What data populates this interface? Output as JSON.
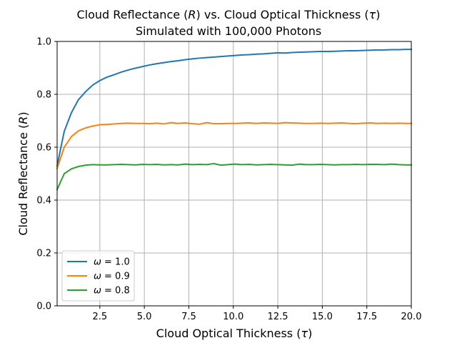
{
  "chart_data": {
    "type": "line",
    "title": "Cloud Reflectance (R) vs. Cloud Optical Thickness (τ)",
    "title_parts": {
      "line1_pre": "Cloud Reflectance (",
      "line1_r": "R",
      "line1_mid": ") vs. Cloud Optical Thickness (",
      "line1_tau": "τ",
      "line1_post": ")",
      "line2": "Simulated with 100,000 Photons"
    },
    "xlabel": "Cloud Optical Thickness (τ)",
    "xlabel_parts": {
      "pre": "Cloud Optical Thickness (",
      "sym": "τ",
      "post": ")"
    },
    "ylabel": "Cloud Reflectance (R)",
    "ylabel_parts": {
      "pre": "Cloud Reflectance (",
      "sym": "R",
      "post": ")"
    },
    "xlim": [
      0.1,
      20.0
    ],
    "ylim": [
      0.0,
      1.0
    ],
    "xticks": [
      "2.5",
      "5.0",
      "7.5",
      "10.0",
      "12.5",
      "15.0",
      "17.5",
      "20.0"
    ],
    "xtick_values": [
      2.5,
      5.0,
      7.5,
      10.0,
      12.5,
      15.0,
      17.5,
      20.0
    ],
    "yticks": [
      "0.0",
      "0.2",
      "0.4",
      "0.6",
      "0.8",
      "1.0"
    ],
    "ytick_values": [
      0.0,
      0.2,
      0.4,
      0.6,
      0.8,
      1.0
    ],
    "grid": true,
    "legend_position": "lower-left",
    "x": [
      0.1,
      0.5,
      0.9,
      1.3,
      1.7,
      2.1,
      2.5,
      2.9,
      3.3,
      3.7,
      4.1,
      4.5,
      4.9,
      5.3,
      5.7,
      6.1,
      6.5,
      6.9,
      7.3,
      7.7,
      8.1,
      8.5,
      8.9,
      9.3,
      9.7,
      10.1,
      10.5,
      10.9,
      11.3,
      11.7,
      12.1,
      12.5,
      12.9,
      13.3,
      13.7,
      14.1,
      14.5,
      14.9,
      15.3,
      15.7,
      16.1,
      16.5,
      16.9,
      17.3,
      17.7,
      18.1,
      18.5,
      18.9,
      19.3,
      19.7,
      20.0
    ],
    "series": [
      {
        "name": "ω = 1.0",
        "label_sym": "ω",
        "label_val": " = 1.0",
        "color": "#1f77b4",
        "values": [
          0.53,
          0.66,
          0.73,
          0.78,
          0.81,
          0.835,
          0.852,
          0.865,
          0.874,
          0.884,
          0.892,
          0.899,
          0.905,
          0.911,
          0.916,
          0.92,
          0.924,
          0.927,
          0.931,
          0.934,
          0.937,
          0.939,
          0.941,
          0.943,
          0.945,
          0.947,
          0.949,
          0.95,
          0.952,
          0.953,
          0.955,
          0.957,
          0.956,
          0.958,
          0.959,
          0.96,
          0.961,
          0.962,
          0.962,
          0.963,
          0.964,
          0.965,
          0.965,
          0.966,
          0.967,
          0.968,
          0.968,
          0.969,
          0.969,
          0.97,
          0.97
        ]
      },
      {
        "name": "ω = 0.9",
        "label_sym": "ω",
        "label_val": " = 0.9",
        "color": "#ff7f0e",
        "values": [
          0.52,
          0.6,
          0.64,
          0.662,
          0.673,
          0.68,
          0.685,
          0.686,
          0.688,
          0.69,
          0.691,
          0.69,
          0.69,
          0.689,
          0.691,
          0.688,
          0.693,
          0.69,
          0.692,
          0.689,
          0.687,
          0.693,
          0.689,
          0.689,
          0.69,
          0.69,
          0.691,
          0.692,
          0.69,
          0.692,
          0.691,
          0.69,
          0.693,
          0.692,
          0.691,
          0.69,
          0.69,
          0.691,
          0.69,
          0.691,
          0.692,
          0.69,
          0.689,
          0.691,
          0.692,
          0.69,
          0.691,
          0.69,
          0.691,
          0.69,
          0.69
        ]
      },
      {
        "name": "ω = 0.8",
        "label_sym": "ω",
        "label_val": " = 0.8",
        "color": "#2ca02c",
        "values": [
          0.44,
          0.5,
          0.518,
          0.527,
          0.532,
          0.534,
          0.533,
          0.533,
          0.534,
          0.535,
          0.534,
          0.533,
          0.535,
          0.534,
          0.535,
          0.533,
          0.534,
          0.533,
          0.536,
          0.534,
          0.535,
          0.534,
          0.538,
          0.532,
          0.534,
          0.536,
          0.534,
          0.535,
          0.533,
          0.534,
          0.535,
          0.534,
          0.533,
          0.532,
          0.536,
          0.534,
          0.534,
          0.535,
          0.534,
          0.533,
          0.534,
          0.534,
          0.535,
          0.534,
          0.535,
          0.535,
          0.534,
          0.536,
          0.534,
          0.533,
          0.533
        ]
      }
    ]
  }
}
